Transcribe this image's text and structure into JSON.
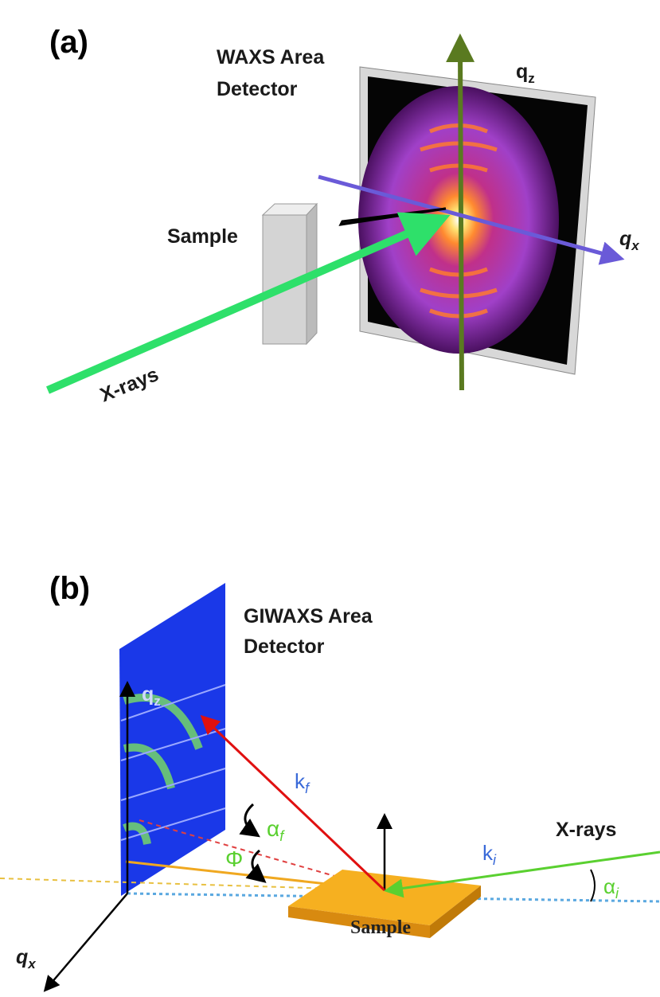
{
  "panel_a": {
    "label": "(a)",
    "detector_label": [
      "WAXS Area",
      "Detector"
    ],
    "qz": {
      "symbol": "q",
      "subscript": "z"
    },
    "qx": {
      "symbol": "q",
      "subscript": "x"
    },
    "sample": "Sample",
    "beam": "X-rays"
  },
  "panel_b": {
    "label": "(b)",
    "detector_label": [
      "GIWAXS Area",
      "Detector"
    ],
    "qz": {
      "symbol": "q",
      "subscript": "z"
    },
    "qx": {
      "symbol": "q",
      "subscript": "x"
    },
    "kf": {
      "symbol": "k",
      "subscript": "f"
    },
    "ki": {
      "symbol": "k",
      "subscript": "i"
    },
    "alpha_f": {
      "symbol": "α",
      "subscript": "f"
    },
    "alpha_i": {
      "symbol": "α",
      "subscript": "i"
    },
    "phi": "Φ",
    "beam": "X-rays",
    "sample": "Sample"
  }
}
